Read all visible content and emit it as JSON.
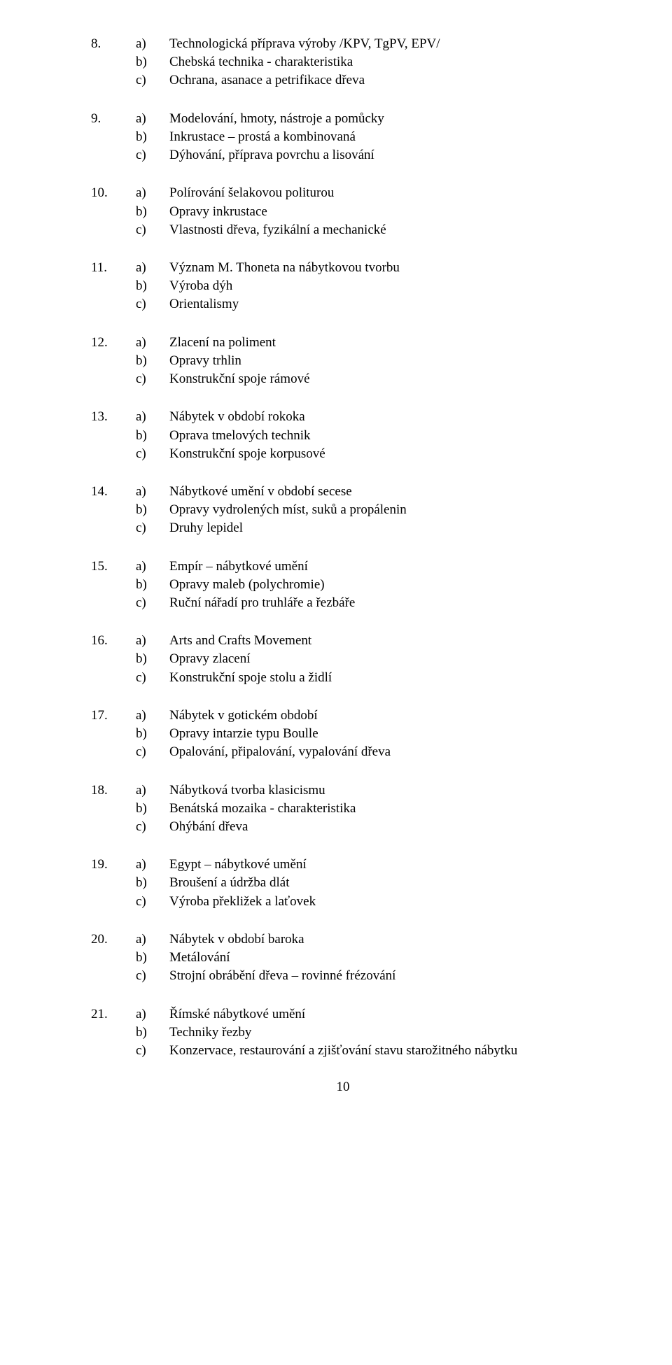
{
  "items": [
    {
      "num": "8.",
      "a": "Technologická příprava výroby /KPV, TgPV, EPV/",
      "b": "Chebská technika - charakteristika",
      "c": "Ochrana, asanace a petrifikace dřeva"
    },
    {
      "num": "9.",
      "a": "Modelování, hmoty, nástroje a pomůcky",
      "b": "Inkrustace – prostá a kombinovaná",
      "c": "Dýhování, příprava povrchu a lisování"
    },
    {
      "num": "10.",
      "a": "Polírování šelakovou politurou",
      "b": "Opravy inkrustace",
      "c": "Vlastnosti dřeva, fyzikální a mechanické"
    },
    {
      "num": "11.",
      "a": "Význam M. Thoneta na nábytkovou tvorbu",
      "b": "Výroba dýh",
      "c": "Orientalismy"
    },
    {
      "num": "12.",
      "a": "Zlacení na poliment",
      "b": "Opravy trhlin",
      "c": "Konstrukční spoje rámové"
    },
    {
      "num": "13.",
      "a": "Nábytek v období rokoka",
      "b": "Oprava tmelových technik",
      "c": "Konstrukční spoje korpusové"
    },
    {
      "num": "14.",
      "a": "Nábytkové umění v období secese",
      "b": "Opravy vydrolených míst, suků a propálenin",
      "c": "Druhy lepidel"
    },
    {
      "num": "15.",
      "a": "Empír – nábytkové umění",
      "b": "Opravy maleb (polychromie)",
      "c": "Ruční nářadí pro truhláře a řezbáře"
    },
    {
      "num": "16.",
      "a": "Arts and Crafts Movement",
      "b": "Opravy zlacení",
      "c": "Konstrukční spoje stolu a židlí"
    },
    {
      "num": "17.",
      "a": "Nábytek v gotickém období",
      "b": "Opravy intarzie typu Boulle",
      "c": "Opalování, připalování, vypalování dřeva"
    },
    {
      "num": "18.",
      "a": "Nábytková tvorba klasicismu",
      "b": "Benátská mozaika - charakteristika",
      "c": "Ohýbání dřeva"
    },
    {
      "num": "19.",
      "a": "Egypt – nábytkové umění",
      "b": "Broušení a údržba dlát",
      "c": "Výroba překližek a laťovek"
    },
    {
      "num": "20.",
      "a": "Nábytek v období baroka",
      "b": "Metálování",
      "c": "Strojní obrábění dřeva – rovinné frézování"
    },
    {
      "num": "21.",
      "a": "Římské nábytkové umění",
      "b": "Techniky řezby",
      "c": "Konzervace, restaurování a zjišťování stavu starožitného nábytku"
    }
  ],
  "letters": {
    "a": "a)",
    "b": "b)",
    "c": "c)"
  },
  "pageNumber": "10"
}
